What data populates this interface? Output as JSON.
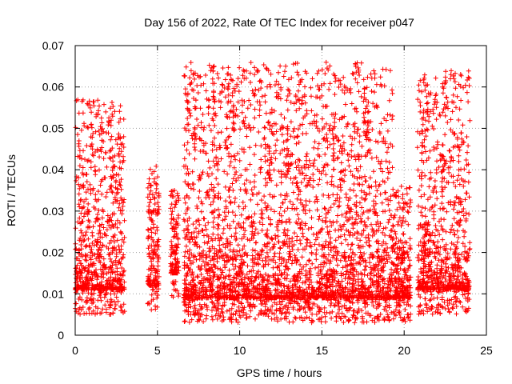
{
  "chart_data": {
    "type": "scatter",
    "title": "Day 156 of 2022, Rate Of TEC Index for receiver p047",
    "xlabel": "GPS time / hours",
    "ylabel": "ROTI / TECUs",
    "xlim": [
      0,
      25
    ],
    "ylim": [
      0,
      0.07
    ],
    "xticks": [
      "0",
      "5",
      "10",
      "15",
      "20",
      "25"
    ],
    "yticks": [
      "0",
      "0.01",
      "0.02",
      "0.03",
      "0.04",
      "0.05",
      "0.06",
      "0.07"
    ],
    "grid": true,
    "marker": "+",
    "color": "#ff0000",
    "segments": [
      {
        "x": [
          0.0,
          3.0
        ],
        "low": 0.005,
        "high": 0.057
      },
      {
        "x": [
          4.4,
          5.1
        ],
        "low": 0.006,
        "high": 0.041
      },
      {
        "x": [
          5.8,
          6.3
        ],
        "low": 0.009,
        "high": 0.036
      },
      {
        "x": [
          6.6,
          19.3
        ],
        "low": 0.003,
        "high": 0.066
      },
      {
        "x": [
          19.3,
          20.4
        ],
        "low": 0.003,
        "high": 0.036
      },
      {
        "x": [
          20.8,
          24.0
        ],
        "low": 0.005,
        "high": 0.064
      }
    ],
    "peaks": [
      {
        "x": 1.0,
        "y": 0.056
      },
      {
        "x": 1.6,
        "y": 0.054
      },
      {
        "x": 2.7,
        "y": 0.053
      },
      {
        "x": 6.8,
        "y": 0.061
      },
      {
        "x": 7.3,
        "y": 0.056
      },
      {
        "x": 8.4,
        "y": 0.064
      },
      {
        "x": 9.3,
        "y": 0.066
      },
      {
        "x": 9.6,
        "y": 0.058
      },
      {
        "x": 11.8,
        "y": 0.05
      },
      {
        "x": 12.9,
        "y": 0.051
      },
      {
        "x": 15.7,
        "y": 0.052
      },
      {
        "x": 17.6,
        "y": 0.06
      },
      {
        "x": 17.8,
        "y": 0.056
      },
      {
        "x": 21.4,
        "y": 0.061
      },
      {
        "x": 22.5,
        "y": 0.064
      },
      {
        "x": 22.3,
        "y": 0.046
      }
    ]
  }
}
